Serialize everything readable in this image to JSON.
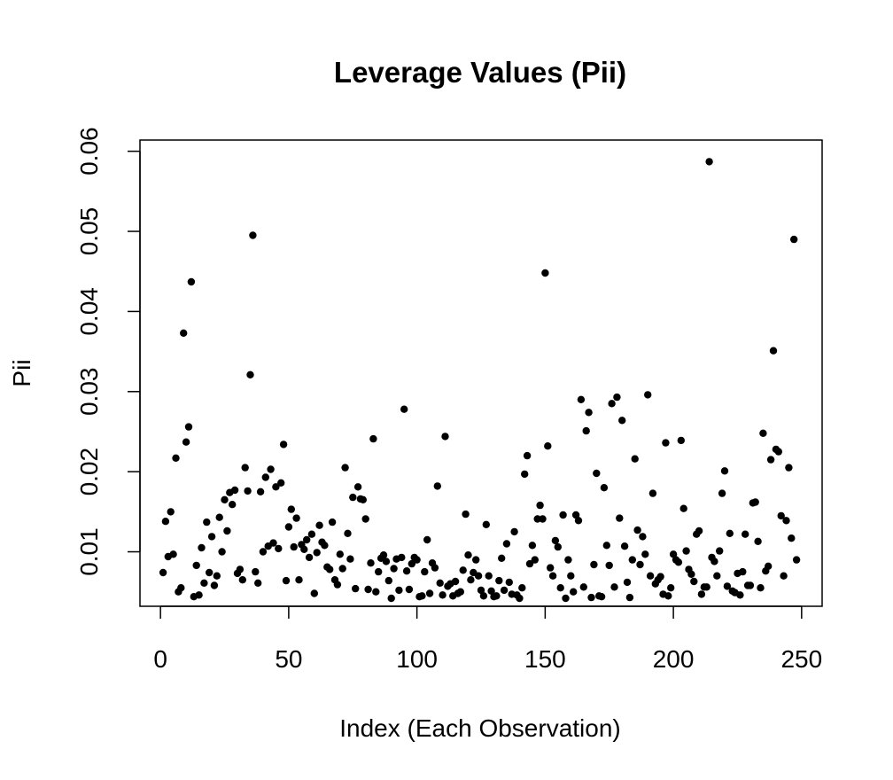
{
  "chart_data": {
    "type": "scatter",
    "title": "Leverage Values (Pii)",
    "xlabel": "Index (Each Observation)",
    "ylabel": "Pii",
    "xlim": [
      -8,
      258
    ],
    "ylim": [
      0.0032,
      0.0614
    ],
    "x_ticks": [
      0,
      50,
      100,
      150,
      200,
      250
    ],
    "x_tick_labels": [
      "0",
      "50",
      "100",
      "150",
      "200",
      "250"
    ],
    "y_ticks": [
      0.01,
      0.02,
      0.03,
      0.04,
      0.05,
      0.06
    ],
    "y_tick_labels": [
      "0.01",
      "0.02",
      "0.03",
      "0.04",
      "0.05",
      "0.06"
    ],
    "grid": false,
    "legend": "none",
    "marker_color": "#000000",
    "series": [
      {
        "x": [
          1,
          2,
          3,
          4,
          5,
          6,
          7,
          8,
          9,
          10,
          11,
          12,
          13,
          14,
          15,
          16,
          17,
          18,
          19,
          20,
          21,
          22,
          23,
          24,
          25,
          26,
          27,
          28,
          29,
          30,
          31,
          32,
          33,
          34,
          35,
          36,
          37,
          38,
          39,
          40,
          41,
          42,
          43,
          44,
          45,
          46,
          47,
          48,
          49,
          50,
          51,
          52,
          53,
          54,
          55,
          56,
          57,
          58,
          59,
          60,
          61,
          62,
          63,
          64,
          65,
          66,
          67,
          68,
          69,
          70,
          71,
          72,
          73,
          74,
          75,
          76,
          77,
          78,
          79,
          80,
          81,
          82,
          83,
          84,
          85,
          86,
          87,
          88,
          89,
          90,
          91,
          92,
          93,
          94,
          95,
          96,
          97,
          98,
          99,
          100,
          101,
          102,
          103,
          104,
          105,
          106,
          107,
          108,
          109,
          110,
          111,
          112,
          113,
          114,
          115,
          116,
          117,
          118,
          119,
          120,
          121,
          122,
          123,
          124,
          125,
          126,
          127,
          128,
          129,
          130,
          131,
          132,
          133,
          134,
          135,
          136,
          137,
          138,
          139,
          140,
          141,
          142,
          143,
          144,
          145,
          146,
          147,
          148,
          149,
          150,
          151,
          152,
          153,
          154,
          155,
          156,
          157,
          158,
          159,
          160,
          161,
          162,
          163,
          164,
          165,
          166,
          167,
          168,
          169,
          170,
          171,
          172,
          173,
          174,
          175,
          176,
          177,
          178,
          179,
          180,
          181,
          182,
          183,
          184,
          185,
          186,
          187,
          188,
          189,
          190,
          191,
          192,
          193,
          194,
          195,
          196,
          197,
          198,
          199,
          200,
          201,
          202,
          203,
          204,
          205,
          206,
          207,
          208,
          209,
          210,
          211,
          212,
          213,
          214,
          215,
          216,
          217,
          218,
          219,
          220,
          221,
          222,
          223,
          224,
          225,
          226,
          227,
          228,
          229,
          230,
          231,
          232,
          233,
          234,
          235,
          236,
          237,
          238,
          239,
          240,
          241,
          242,
          243,
          244,
          245,
          246,
          247,
          248
        ],
        "y": [
          0.0074,
          0.0138,
          0.0094,
          0.015,
          0.0097,
          0.0217,
          0.005,
          0.0055,
          0.0373,
          0.0237,
          0.0256,
          0.0437,
          0.0044,
          0.0083,
          0.0046,
          0.0105,
          0.0061,
          0.0137,
          0.0074,
          0.0119,
          0.0058,
          0.007,
          0.0143,
          0.01,
          0.0165,
          0.0126,
          0.0174,
          0.0159,
          0.0177,
          0.0073,
          0.0078,
          0.0065,
          0.0205,
          0.0176,
          0.0321,
          0.0495,
          0.0075,
          0.0061,
          0.0175,
          0.01,
          0.0193,
          0.0107,
          0.0203,
          0.0111,
          0.0181,
          0.0104,
          0.0186,
          0.0234,
          0.0064,
          0.0131,
          0.0153,
          0.0106,
          0.0142,
          0.0065,
          0.0109,
          0.0103,
          0.0115,
          0.0093,
          0.0122,
          0.0048,
          0.0099,
          0.0133,
          0.0112,
          0.0108,
          0.0081,
          0.0078,
          0.0137,
          0.0065,
          0.0059,
          0.0097,
          0.0079,
          0.0205,
          0.0123,
          0.0091,
          0.0168,
          0.0054,
          0.0181,
          0.0166,
          0.0165,
          0.0141,
          0.0053,
          0.0086,
          0.0241,
          0.005,
          0.0075,
          0.0092,
          0.0096,
          0.0088,
          0.0064,
          0.0042,
          0.0079,
          0.0091,
          0.0052,
          0.0093,
          0.0278,
          0.0076,
          0.0053,
          0.0085,
          0.0093,
          0.009,
          0.0044,
          0.0045,
          0.0075,
          0.0115,
          0.0048,
          0.0086,
          0.008,
          0.0182,
          0.0061,
          0.0046,
          0.0244,
          0.0057,
          0.006,
          0.0045,
          0.0063,
          0.0048,
          0.005,
          0.0077,
          0.0147,
          0.0096,
          0.0065,
          0.0074,
          0.009,
          0.007,
          0.0052,
          0.0045,
          0.0134,
          0.007,
          0.0051,
          0.0044,
          0.0045,
          0.0064,
          0.0092,
          0.0052,
          0.011,
          0.0062,
          0.0047,
          0.0125,
          0.0046,
          0.0042,
          0.0055,
          0.0197,
          0.022,
          0.0085,
          0.0108,
          0.009,
          0.0141,
          0.0158,
          0.0141,
          0.0448,
          0.0232,
          0.008,
          0.007,
          0.0114,
          0.0106,
          0.0055,
          0.0146,
          0.0042,
          0.009,
          0.007,
          0.005,
          0.0146,
          0.0139,
          0.029,
          0.0056,
          0.0251,
          0.0274,
          0.0043,
          0.0084,
          0.0198,
          0.0045,
          0.0044,
          0.018,
          0.0108,
          0.0083,
          0.0285,
          0.0056,
          0.0293,
          0.0142,
          0.0264,
          0.0107,
          0.0062,
          0.0043,
          0.009,
          0.0216,
          0.0127,
          0.0084,
          0.0119,
          0.0097,
          0.0296,
          0.007,
          0.0173,
          0.006,
          0.0065,
          0.0069,
          0.0047,
          0.0236,
          0.0045,
          0.0055,
          0.0097,
          0.009,
          0.0087,
          0.0239,
          0.0154,
          0.0101,
          0.0078,
          0.0072,
          0.0063,
          0.0122,
          0.0126,
          0.0047,
          0.0056,
          0.0056,
          0.0587,
          0.0093,
          0.0088,
          0.007,
          0.0101,
          0.0173,
          0.0201,
          0.0057,
          0.0123,
          0.0051,
          0.0049,
          0.0073,
          0.0046,
          0.0075,
          0.0122,
          0.0058,
          0.0058,
          0.0161,
          0.0162,
          0.0113,
          0.0055,
          0.0248,
          0.0076,
          0.0082,
          0.0215,
          0.0351,
          0.0228,
          0.0225,
          0.0145,
          0.007,
          0.0139,
          0.0205,
          0.0117,
          0.049,
          0.009
        ]
      }
    ]
  }
}
